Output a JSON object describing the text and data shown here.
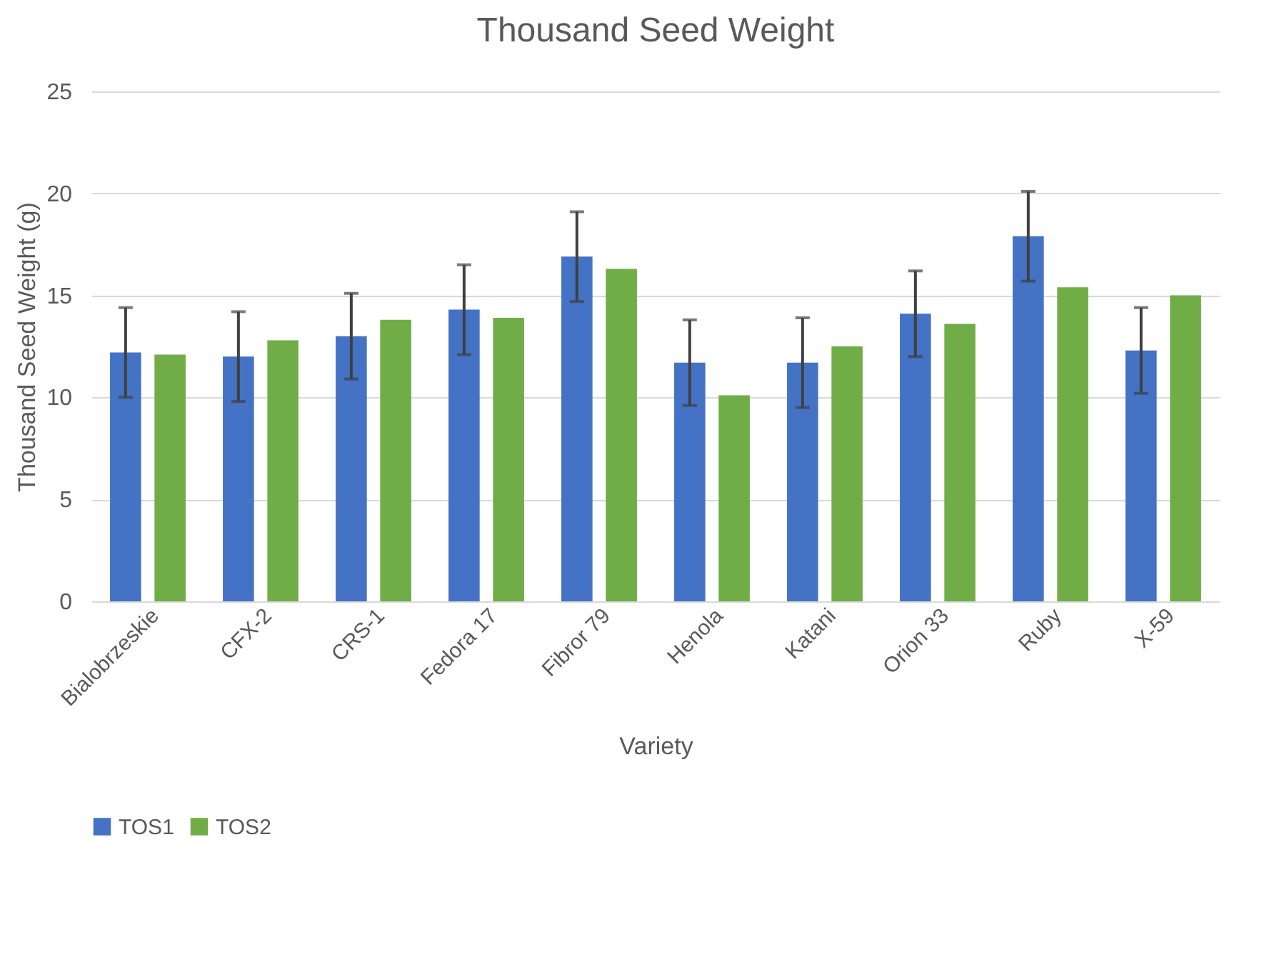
{
  "chart_data": {
    "type": "bar",
    "title": "Thousand Seed Weight",
    "xlabel": "Variety",
    "ylabel": "Thousand Seed Weight (g)",
    "categories": [
      "Bialobrzeskie",
      "CFX-2",
      "CRS-1",
      "Fedora 17",
      "Fibror 79",
      "Henola",
      "Katani",
      "Orion 33",
      "Ruby",
      "X-59"
    ],
    "series": [
      {
        "name": "TOS1",
        "color": "#4472c4",
        "values": [
          12.2,
          12.0,
          13.0,
          14.3,
          16.9,
          11.7,
          11.7,
          14.1,
          17.9,
          12.3
        ],
        "errors": [
          2.2,
          2.2,
          2.1,
          2.2,
          2.2,
          2.1,
          2.2,
          2.1,
          2.2,
          2.1
        ]
      },
      {
        "name": "TOS2",
        "color": "#70ad47",
        "values": [
          12.1,
          12.8,
          13.8,
          13.9,
          16.3,
          10.1,
          12.5,
          13.6,
          15.4,
          15.0
        ]
      }
    ],
    "ylim": [
      0,
      25
    ],
    "yticks": [
      0,
      5,
      10,
      15,
      20,
      25
    ],
    "grid": "y",
    "legend": "bottom"
  }
}
